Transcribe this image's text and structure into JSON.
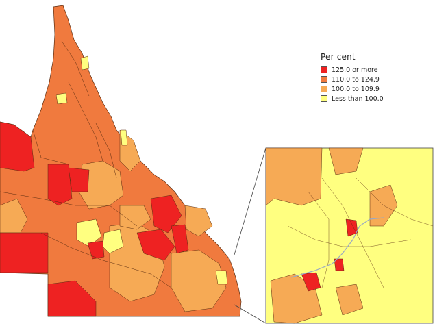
{
  "legend": {
    "title": "Per cent",
    "items": [
      {
        "label": "125.0 or more",
        "color": "#ee2222"
      },
      {
        "label": "110.0 to 124.9",
        "color": "#f07a3e"
      },
      {
        "label": "100.0 to 109.9",
        "color": "#f6aa55"
      },
      {
        "label": "Less than 100.0",
        "color": "#ffff80"
      }
    ]
  },
  "colors": {
    "class_1": "#ee2222",
    "class_2": "#f07a3e",
    "class_3": "#f6aa55",
    "class_4": "#ffff80",
    "boundary": "#5a2c10",
    "inset_frame": "#444444"
  }
}
